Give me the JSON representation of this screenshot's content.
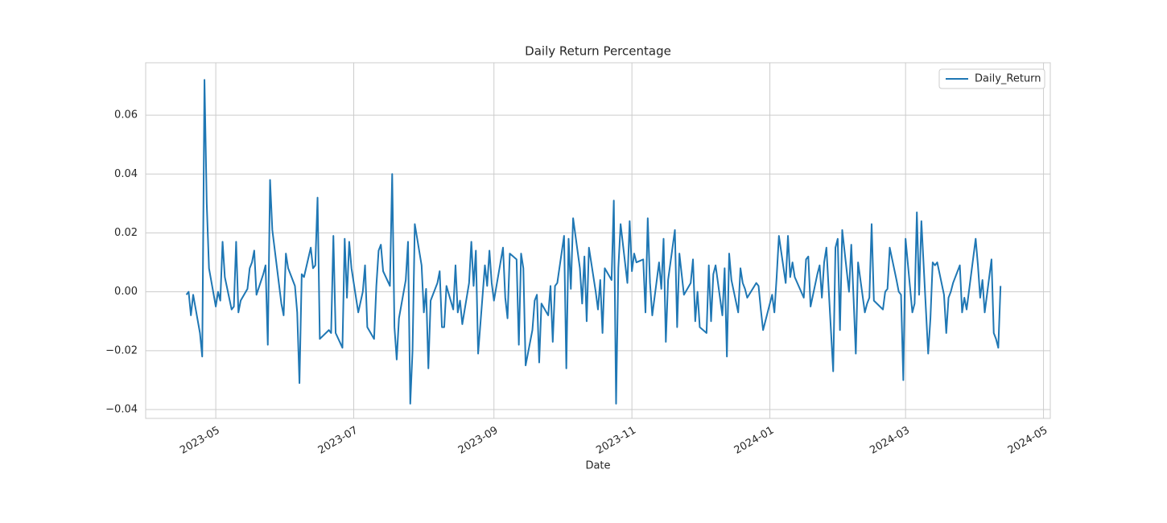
{
  "chart_data": {
    "type": "line",
    "title": "Daily Return Percentage",
    "xlabel": "Date",
    "x": [
      "2023-04-18",
      "2023-04-19",
      "2023-04-20",
      "2023-04-21",
      "2023-04-24",
      "2023-04-25",
      "2023-04-26",
      "2023-04-27",
      "2023-04-28",
      "2023-05-01",
      "2023-05-02",
      "2023-05-03",
      "2023-05-04",
      "2023-05-05",
      "2023-05-08",
      "2023-05-09",
      "2023-05-10",
      "2023-05-11",
      "2023-05-12",
      "2023-05-15",
      "2023-05-16",
      "2023-05-17",
      "2023-05-18",
      "2023-05-19",
      "2023-05-22",
      "2023-05-23",
      "2023-05-24",
      "2023-05-25",
      "2023-05-26",
      "2023-05-30",
      "2023-05-31",
      "2023-06-01",
      "2023-06-02",
      "2023-06-05",
      "2023-06-06",
      "2023-06-07",
      "2023-06-08",
      "2023-06-09",
      "2023-06-12",
      "2023-06-13",
      "2023-06-14",
      "2023-06-15",
      "2023-06-16",
      "2023-06-20",
      "2023-06-21",
      "2023-06-22",
      "2023-06-23",
      "2023-06-26",
      "2023-06-27",
      "2023-06-28",
      "2023-06-29",
      "2023-06-30",
      "2023-07-03",
      "2023-07-05",
      "2023-07-06",
      "2023-07-07",
      "2023-07-10",
      "2023-07-11",
      "2023-07-12",
      "2023-07-13",
      "2023-07-14",
      "2023-07-17",
      "2023-07-18",
      "2023-07-19",
      "2023-07-20",
      "2023-07-21",
      "2023-07-24",
      "2023-07-25",
      "2023-07-26",
      "2023-07-27",
      "2023-07-28",
      "2023-07-31",
      "2023-08-01",
      "2023-08-02",
      "2023-08-03",
      "2023-08-04",
      "2023-08-07",
      "2023-08-08",
      "2023-08-09",
      "2023-08-10",
      "2023-08-11",
      "2023-08-14",
      "2023-08-15",
      "2023-08-16",
      "2023-08-17",
      "2023-08-18",
      "2023-08-21",
      "2023-08-22",
      "2023-08-23",
      "2023-08-24",
      "2023-08-25",
      "2023-08-28",
      "2023-08-29",
      "2023-08-30",
      "2023-08-31",
      "2023-09-01",
      "2023-09-05",
      "2023-09-06",
      "2023-09-07",
      "2023-09-08",
      "2023-09-11",
      "2023-09-12",
      "2023-09-13",
      "2023-09-14",
      "2023-09-15",
      "2023-09-18",
      "2023-09-19",
      "2023-09-20",
      "2023-09-21",
      "2023-09-22",
      "2023-09-25",
      "2023-09-26",
      "2023-09-27",
      "2023-09-28",
      "2023-09-29",
      "2023-10-02",
      "2023-10-03",
      "2023-10-04",
      "2023-10-05",
      "2023-10-06",
      "2023-10-09",
      "2023-10-10",
      "2023-10-11",
      "2023-10-12",
      "2023-10-13",
      "2023-10-16",
      "2023-10-17",
      "2023-10-18",
      "2023-10-19",
      "2023-10-20",
      "2023-10-23",
      "2023-10-24",
      "2023-10-25",
      "2023-10-26",
      "2023-10-27",
      "2023-10-30",
      "2023-10-31",
      "2023-11-01",
      "2023-11-02",
      "2023-11-03",
      "2023-11-06",
      "2023-11-07",
      "2023-11-08",
      "2023-11-09",
      "2023-11-10",
      "2023-11-13",
      "2023-11-14",
      "2023-11-15",
      "2023-11-16",
      "2023-11-17",
      "2023-11-20",
      "2023-11-21",
      "2023-11-22",
      "2023-11-24",
      "2023-11-27",
      "2023-11-28",
      "2023-11-29",
      "2023-11-30",
      "2023-12-01",
      "2023-12-04",
      "2023-12-05",
      "2023-12-06",
      "2023-12-07",
      "2023-12-08",
      "2023-12-11",
      "2023-12-12",
      "2023-12-13",
      "2023-12-14",
      "2023-12-15",
      "2023-12-18",
      "2023-12-19",
      "2023-12-20",
      "2023-12-21",
      "2023-12-22",
      "2023-12-26",
      "2023-12-27",
      "2023-12-28",
      "2023-12-29",
      "2024-01-02",
      "2024-01-03",
      "2024-01-04",
      "2024-01-05",
      "2024-01-08",
      "2024-01-09",
      "2024-01-10",
      "2024-01-11",
      "2024-01-12",
      "2024-01-16",
      "2024-01-17",
      "2024-01-18",
      "2024-01-19",
      "2024-01-22",
      "2024-01-23",
      "2024-01-24",
      "2024-01-25",
      "2024-01-26",
      "2024-01-29",
      "2024-01-30",
      "2024-01-31",
      "2024-02-01",
      "2024-02-02",
      "2024-02-05",
      "2024-02-06",
      "2024-02-07",
      "2024-02-08",
      "2024-02-09",
      "2024-02-12",
      "2024-02-13",
      "2024-02-14",
      "2024-02-15",
      "2024-02-16",
      "2024-02-20",
      "2024-02-21",
      "2024-02-22",
      "2024-02-23",
      "2024-02-26",
      "2024-02-27",
      "2024-02-28",
      "2024-02-29",
      "2024-03-01",
      "2024-03-04",
      "2024-03-05",
      "2024-03-06",
      "2024-03-07",
      "2024-03-08",
      "2024-03-11",
      "2024-03-12",
      "2024-03-13",
      "2024-03-14",
      "2024-03-15",
      "2024-03-18",
      "2024-03-19",
      "2024-03-20",
      "2024-03-21",
      "2024-03-22",
      "2024-03-25",
      "2024-03-26",
      "2024-03-27",
      "2024-03-28",
      "2024-04-01",
      "2024-04-02",
      "2024-04-03",
      "2024-04-04",
      "2024-04-05",
      "2024-04-08",
      "2024-04-09",
      "2024-04-10",
      "2024-04-11",
      "2024-04-12"
    ],
    "series": [
      {
        "name": "Daily_Return",
        "color": "#1f77b4",
        "values": [
          -0.001,
          0.0,
          -0.008,
          -0.001,
          -0.014,
          -0.022,
          0.072,
          0.03,
          0.008,
          -0.005,
          0.0,
          -0.003,
          0.017,
          0.005,
          -0.006,
          -0.005,
          0.017,
          -0.007,
          -0.003,
          0.001,
          0.008,
          0.01,
          0.014,
          -0.001,
          0.006,
          0.009,
          -0.018,
          0.038,
          0.021,
          -0.004,
          -0.008,
          0.013,
          0.008,
          0.002,
          -0.007,
          -0.031,
          0.006,
          0.005,
          0.015,
          0.008,
          0.009,
          0.032,
          -0.016,
          -0.013,
          -0.014,
          0.019,
          -0.014,
          -0.019,
          0.018,
          -0.002,
          0.017,
          0.008,
          -0.007,
          0.0,
          0.009,
          -0.012,
          -0.016,
          0.002,
          0.014,
          0.016,
          0.007,
          0.002,
          0.04,
          -0.012,
          -0.023,
          -0.009,
          0.004,
          0.017,
          -0.038,
          -0.02,
          0.023,
          0.009,
          -0.007,
          0.001,
          -0.026,
          -0.003,
          0.003,
          0.007,
          -0.012,
          -0.012,
          0.002,
          -0.006,
          0.009,
          -0.007,
          -0.003,
          -0.011,
          0.003,
          0.017,
          0.002,
          0.014,
          -0.021,
          0.009,
          0.002,
          0.014,
          0.003,
          -0.003,
          0.015,
          -0.002,
          -0.009,
          0.013,
          0.011,
          -0.018,
          0.013,
          0.008,
          -0.025,
          -0.013,
          -0.003,
          -0.001,
          -0.024,
          -0.004,
          -0.008,
          0.002,
          -0.017,
          0.002,
          0.003,
          0.019,
          -0.026,
          0.018,
          0.001,
          0.025,
          0.008,
          -0.004,
          0.012,
          -0.01,
          0.015,
          0.0,
          -0.006,
          0.004,
          -0.014,
          0.008,
          0.004,
          0.031,
          -0.038,
          0.008,
          0.023,
          0.003,
          0.024,
          0.007,
          0.013,
          0.01,
          0.011,
          -0.007,
          0.025,
          0.003,
          -0.008,
          0.01,
          0.001,
          0.018,
          -0.017,
          0.004,
          0.021,
          -0.012,
          0.013,
          -0.001,
          0.003,
          0.011,
          -0.01,
          0.0,
          -0.012,
          -0.014,
          0.009,
          -0.01,
          0.006,
          0.009,
          -0.008,
          0.008,
          -0.022,
          0.013,
          0.004,
          -0.007,
          0.008,
          0.003,
          0.001,
          -0.002,
          0.003,
          0.002,
          -0.006,
          -0.013,
          -0.001,
          -0.007,
          0.005,
          0.019,
          0.003,
          0.019,
          0.005,
          0.01,
          0.005,
          -0.002,
          0.011,
          0.012,
          -0.005,
          0.006,
          0.009,
          -0.002,
          0.01,
          0.015,
          -0.027,
          0.015,
          0.018,
          -0.013,
          0.021,
          0.0,
          0.016,
          -0.002,
          -0.021,
          0.01,
          -0.007,
          -0.004,
          -0.002,
          0.023,
          -0.003,
          -0.006,
          0.0,
          0.001,
          0.015,
          0.004,
          0.0,
          -0.001,
          -0.03,
          0.018,
          -0.007,
          -0.004,
          0.027,
          -0.001,
          0.024,
          -0.021,
          -0.009,
          0.01,
          0.009,
          0.01,
          -0.001,
          -0.014,
          -0.002,
          0.0,
          0.003,
          0.009,
          -0.007,
          -0.002,
          -0.006,
          0.018,
          0.009,
          -0.002,
          0.004,
          -0.007,
          0.011,
          -0.014,
          -0.016,
          -0.019,
          0.002
        ]
      }
    ],
    "xlim": [
      "2023-03-31",
      "2024-05-04"
    ],
    "xticks": [
      {
        "value": "2023-05-01",
        "label": "2023-05"
      },
      {
        "value": "2023-07-01",
        "label": "2023-07"
      },
      {
        "value": "2023-09-01",
        "label": "2023-09"
      },
      {
        "value": "2023-11-01",
        "label": "2023-11"
      },
      {
        "value": "2024-01-01",
        "label": "2024-01"
      },
      {
        "value": "2024-03-01",
        "label": "2024-03"
      },
      {
        "value": "2024-05-01",
        "label": "2024-05"
      }
    ],
    "ylim": [
      -0.043,
      0.0778
    ],
    "yticks": [
      {
        "value": -0.04,
        "label": "−0.04"
      },
      {
        "value": -0.02,
        "label": "−0.02"
      },
      {
        "value": 0,
        "label": "0.00"
      },
      {
        "value": 0.02,
        "label": "0.02"
      },
      {
        "value": 0.04,
        "label": "0.04"
      },
      {
        "value": 0.06,
        "label": "0.06"
      }
    ],
    "grid": true,
    "legend": "upper right"
  }
}
